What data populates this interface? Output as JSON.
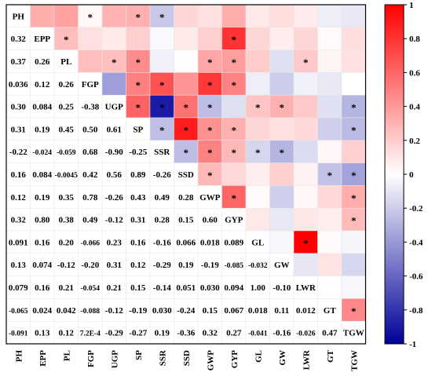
{
  "chart_data": {
    "type": "heatmap",
    "title": "",
    "variables": [
      "PH",
      "EPP",
      "PL",
      "FGP",
      "UGP",
      "SP",
      "SSR",
      "SSD",
      "GWP",
      "GYP",
      "GL",
      "GW",
      "LWR",
      "GT",
      "TGW"
    ],
    "lower_triangle_labels": [
      [],
      [
        "0.32"
      ],
      [
        "0.37",
        "0.26"
      ],
      [
        "0.036",
        "0.12",
        "0.26"
      ],
      [
        "0.30",
        "0.084",
        "0.25",
        "-0.38"
      ],
      [
        "0.31",
        "0.19",
        "0.45",
        "0.50",
        "0.61"
      ],
      [
        "-0.22",
        "-0.024",
        "-0.059",
        "0.68",
        "-0.90",
        "-0.25"
      ],
      [
        "0.16",
        "0.084",
        "-0.0045",
        "0.42",
        "0.56",
        "0.89",
        "-0.26"
      ],
      [
        "0.12",
        "0.19",
        "0.35",
        "0.78",
        "-0.26",
        "0.43",
        "0.49",
        "0.28"
      ],
      [
        "0.32",
        "0.80",
        "0.38",
        "0.49",
        "-0.12",
        "0.31",
        "0.28",
        "0.15",
        "0.60"
      ],
      [
        "0.091",
        "0.16",
        "0.20",
        "-0.066",
        "0.23",
        "0.16",
        "-0.16",
        "0.066",
        "0.018",
        "0.089"
      ],
      [
        "0.13",
        "0.074",
        "-0.12",
        "-0.20",
        "0.31",
        "0.12",
        "-0.29",
        "0.19",
        "-0.19",
        "-0.085",
        "-0.032"
      ],
      [
        "0.079",
        "0.16",
        "0.21",
        "-0.054",
        "0.21",
        "0.15",
        "-0.14",
        "0.051",
        "0.030",
        "0.094",
        "1.00",
        "-0.10"
      ],
      [
        "-0.065",
        "0.024",
        "0.042",
        "-0.088",
        "-0.12",
        "-0.19",
        "0.030",
        "-0.24",
        "0.15",
        "0.067",
        "0.018",
        "0.11",
        "0.012"
      ],
      [
        "-0.091",
        "0.13",
        "0.12",
        "7.2E-4",
        "-0.29",
        "-0.27",
        "0.19",
        "-0.36",
        "0.32",
        "0.27",
        "-0.041",
        "-0.16",
        "-0.026",
        "0.47"
      ]
    ],
    "significance_marker": "*",
    "significant_pairs": [
      [
        0,
        3
      ],
      [
        0,
        5
      ],
      [
        1,
        9
      ],
      [
        2,
        4
      ],
      [
        3,
        5
      ],
      [
        3,
        6
      ],
      [
        4,
        5
      ],
      [
        5,
        9
      ],
      [
        5,
        7
      ],
      [
        0,
        6
      ],
      [
        2,
        12
      ],
      [
        6,
        8
      ],
      [
        7,
        8
      ],
      [
        6,
        10
      ],
      [
        3,
        8
      ],
      [
        4,
        6
      ],
      [
        4,
        7
      ],
      [
        8,
        9
      ],
      [
        1,
        2
      ],
      [
        2,
        5
      ],
      [
        2,
        8
      ],
      [
        2,
        9
      ],
      [
        3,
        9
      ],
      [
        4,
        8
      ],
      [
        4,
        10
      ],
      [
        4,
        11
      ],
      [
        4,
        14
      ],
      [
        5,
        6
      ],
      [
        5,
        8
      ],
      [
        5,
        14
      ],
      [
        6,
        7
      ],
      [
        6,
        9
      ],
      [
        6,
        11
      ],
      [
        7,
        13
      ],
      [
        7,
        14
      ],
      [
        8,
        14
      ],
      [
        9,
        14
      ],
      [
        10,
        12
      ],
      [
        13,
        14
      ]
    ],
    "colorbar": {
      "min": -1,
      "max": 1,
      "ticks": [
        "1",
        "0.8",
        "0.6",
        "0.4",
        "0.2",
        "0",
        "-0.2",
        "-0.4",
        "-0.6",
        "-0.8",
        "-1"
      ],
      "low_color": "#00009a",
      "mid_color": "#ffffff",
      "high_color": "#ff0000"
    }
  }
}
